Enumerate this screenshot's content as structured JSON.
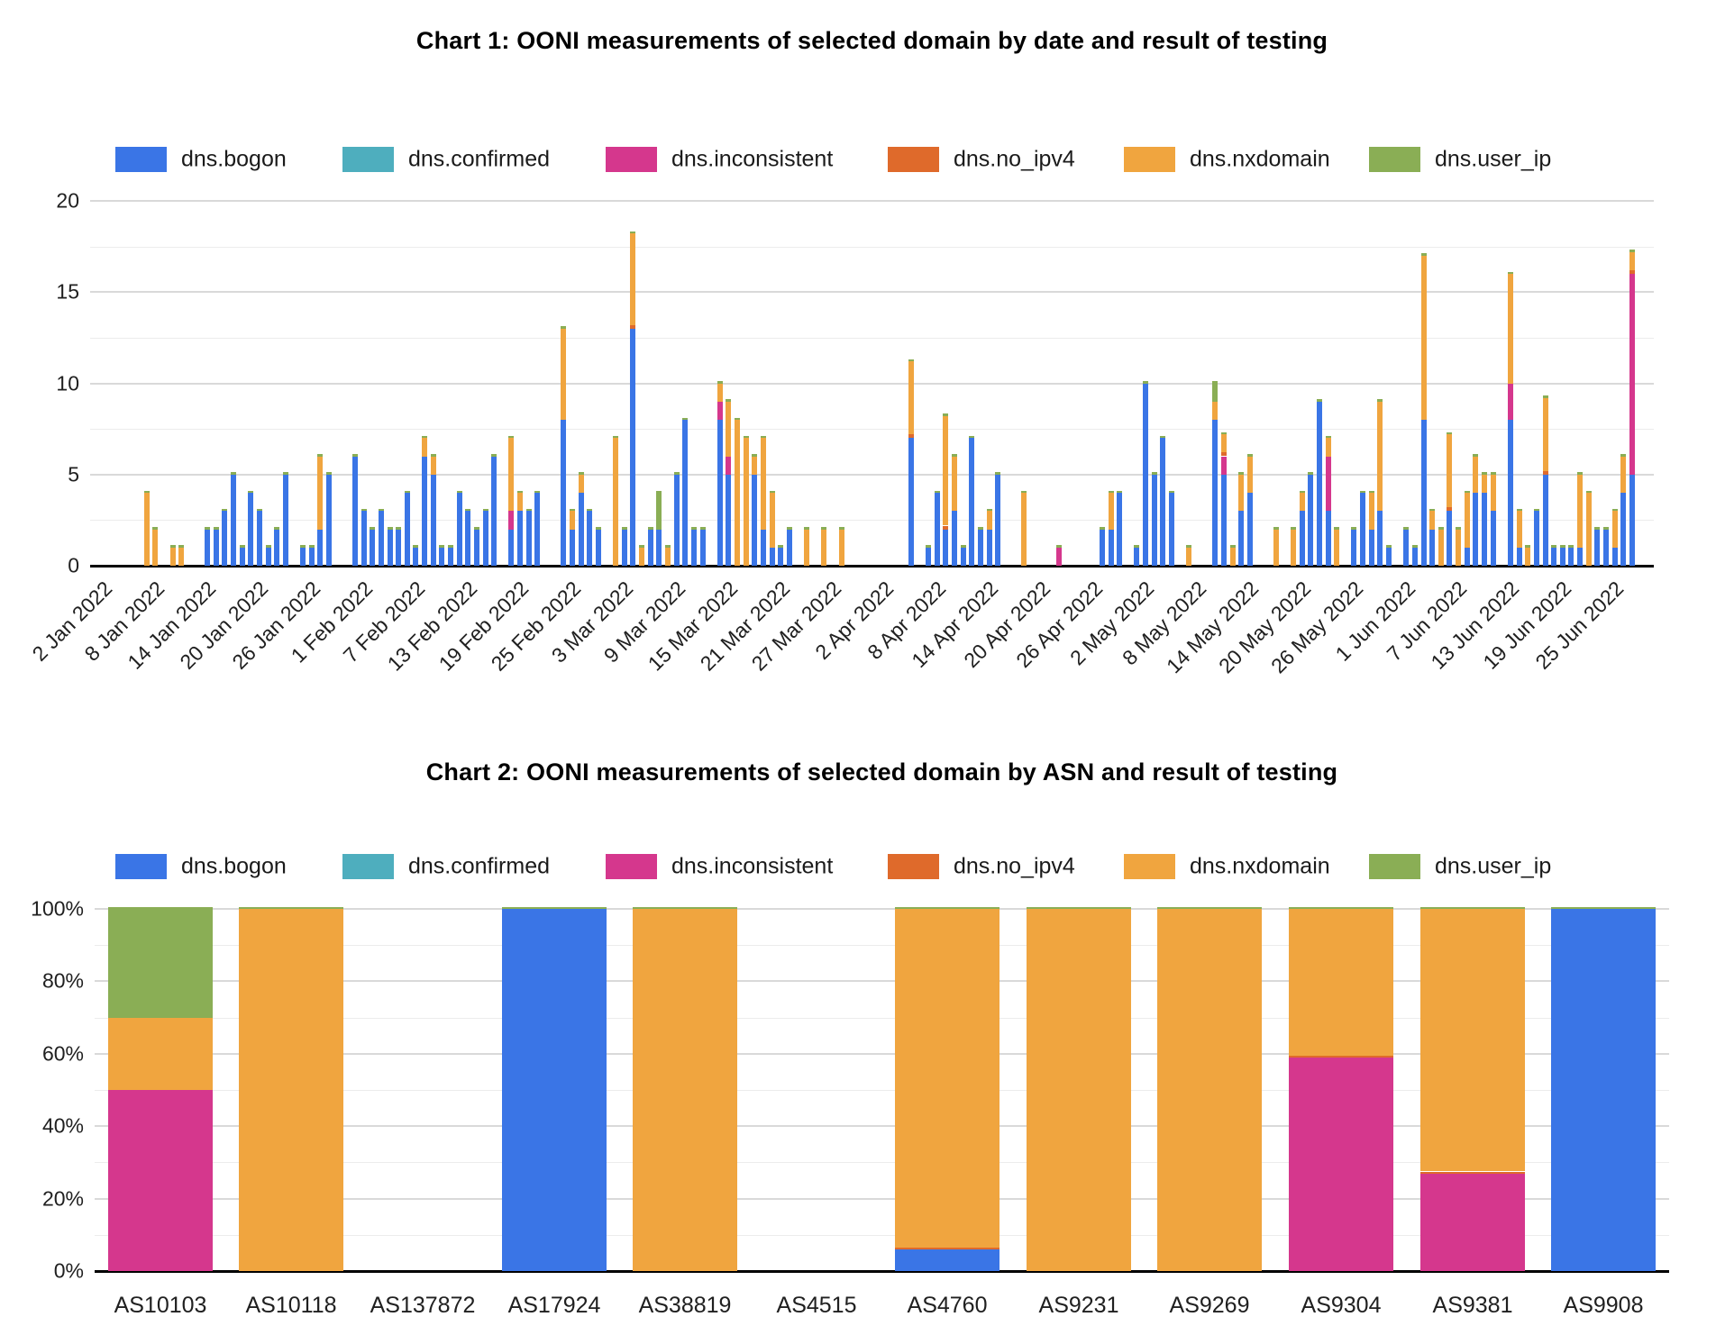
{
  "chart_data": [
    {
      "type": "bar",
      "stacked": true,
      "title": "Chart 1: OONI measurements of selected domain by date and result of testing",
      "legend_position": "top",
      "grid": true,
      "legend": [
        "dns.bogon",
        "dns.confirmed",
        "dns.inconsistent",
        "dns.no_ipv4",
        "dns.nxdomain",
        "dns.user_ip"
      ],
      "colors": {
        "bogon": "#3A75E6",
        "confirmed": "#4EAEBE",
        "inconsistent": "#D5378D",
        "no_ipv4": "#DF6A2B",
        "nxdomain": "#F0A53F",
        "user_ip": "#8AAE55"
      },
      "bar_top_cap_color": "#8AAE55",
      "ylabel": "",
      "xlabel": "",
      "ylim": [
        0,
        20
      ],
      "yticks": [
        0,
        5,
        10,
        15,
        20
      ],
      "x_axis": {
        "unit": "date",
        "start": "2 Jan 2022",
        "days_shown": 180,
        "tick_every_days": 6,
        "tick_labels": [
          "2 Jan 2022",
          "8 Jan 2022",
          "14 Jan 2022",
          "20 Jan 2022",
          "26 Jan 2022",
          "1 Feb 2022",
          "7 Feb 2022",
          "13 Feb 2022",
          "19 Feb 2022",
          "25 Feb 2022",
          "3 Mar 2022",
          "9 Mar 2022",
          "15 Mar 2022",
          "21 Mar 2022",
          "27 Mar 2022",
          "2 Apr 2022",
          "8 Apr 2022",
          "14 Apr 2022",
          "20 Apr 2022",
          "26 Apr 2022",
          "2 May 2022",
          "8 May 2022",
          "14 May 2022",
          "20 May 2022",
          "26 May 2022",
          "1 Jun 2022",
          "7 Jun 2022",
          "13 Jun 2022",
          "19 Jun 2022",
          "25 Jun 2022"
        ]
      },
      "bars": [
        {
          "day": 6,
          "nxdomain": 4
        },
        {
          "day": 7,
          "nxdomain": 2
        },
        {
          "day": 9,
          "nxdomain": 1
        },
        {
          "day": 10,
          "nxdomain": 1
        },
        {
          "day": 13,
          "bogon": 2
        },
        {
          "day": 14,
          "bogon": 2
        },
        {
          "day": 15,
          "bogon": 3
        },
        {
          "day": 16,
          "bogon": 5
        },
        {
          "day": 17,
          "bogon": 1
        },
        {
          "day": 18,
          "bogon": 4
        },
        {
          "day": 19,
          "bogon": 3
        },
        {
          "day": 20,
          "bogon": 1
        },
        {
          "day": 21,
          "bogon": 2
        },
        {
          "day": 22,
          "bogon": 5
        },
        {
          "day": 24,
          "bogon": 1
        },
        {
          "day": 25,
          "bogon": 1
        },
        {
          "day": 26,
          "bogon": 2,
          "nxdomain": 4
        },
        {
          "day": 27,
          "bogon": 5
        },
        {
          "day": 30,
          "bogon": 6
        },
        {
          "day": 31,
          "bogon": 3
        },
        {
          "day": 32,
          "bogon": 2
        },
        {
          "day": 33,
          "bogon": 3
        },
        {
          "day": 34,
          "bogon": 2
        },
        {
          "day": 35,
          "bogon": 2
        },
        {
          "day": 36,
          "bogon": 4
        },
        {
          "day": 37,
          "bogon": 1
        },
        {
          "day": 38,
          "bogon": 6,
          "nxdomain": 1
        },
        {
          "day": 39,
          "bogon": 5,
          "nxdomain": 1
        },
        {
          "day": 40,
          "bogon": 1
        },
        {
          "day": 41,
          "bogon": 1
        },
        {
          "day": 42,
          "bogon": 4
        },
        {
          "day": 43,
          "bogon": 3
        },
        {
          "day": 44,
          "bogon": 2
        },
        {
          "day": 45,
          "bogon": 3
        },
        {
          "day": 46,
          "bogon": 6
        },
        {
          "day": 48,
          "bogon": 2,
          "inconsistent": 1,
          "nxdomain": 4
        },
        {
          "day": 49,
          "bogon": 3,
          "nxdomain": 1
        },
        {
          "day": 50,
          "bogon": 3
        },
        {
          "day": 51,
          "bogon": 4
        },
        {
          "day": 54,
          "bogon": 8,
          "nxdomain": 5
        },
        {
          "day": 55,
          "bogon": 2,
          "nxdomain": 1
        },
        {
          "day": 56,
          "bogon": 4,
          "nxdomain": 1
        },
        {
          "day": 57,
          "bogon": 3
        },
        {
          "day": 58,
          "bogon": 2
        },
        {
          "day": 60,
          "nxdomain": 7
        },
        {
          "day": 61,
          "bogon": 2
        },
        {
          "day": 62,
          "bogon": 13,
          "no_ipv4": 0.2,
          "nxdomain": 5
        },
        {
          "day": 63,
          "nxdomain": 1
        },
        {
          "day": 64,
          "bogon": 2
        },
        {
          "day": 65,
          "bogon": 2,
          "user_ip": 2
        },
        {
          "day": 66,
          "nxdomain": 1
        },
        {
          "day": 67,
          "bogon": 5
        },
        {
          "day": 68,
          "bogon": 8
        },
        {
          "day": 69,
          "bogon": 2
        },
        {
          "day": 70,
          "bogon": 2
        },
        {
          "day": 72,
          "bogon": 8,
          "inconsistent": 1,
          "nxdomain": 1
        },
        {
          "day": 73,
          "bogon": 5,
          "inconsistent": 1,
          "nxdomain": 3
        },
        {
          "day": 74,
          "nxdomain": 8
        },
        {
          "day": 75,
          "nxdomain": 7
        },
        {
          "day": 76,
          "bogon": 5,
          "nxdomain": 1
        },
        {
          "day": 77,
          "bogon": 2,
          "nxdomain": 5
        },
        {
          "day": 78,
          "bogon": 1,
          "nxdomain": 3
        },
        {
          "day": 79,
          "bogon": 1
        },
        {
          "day": 80,
          "bogon": 2
        },
        {
          "day": 82,
          "nxdomain": 2
        },
        {
          "day": 84,
          "nxdomain": 2
        },
        {
          "day": 86,
          "nxdomain": 2
        },
        {
          "day": 94,
          "bogon": 7,
          "no_ipv4": 0.2,
          "nxdomain": 4
        },
        {
          "day": 96,
          "bogon": 1
        },
        {
          "day": 97,
          "bogon": 4
        },
        {
          "day": 98,
          "bogon": 2,
          "no_ipv4": 0.2,
          "nxdomain": 6
        },
        {
          "day": 99,
          "bogon": 3,
          "nxdomain": 3
        },
        {
          "day": 100,
          "bogon": 1
        },
        {
          "day": 101,
          "bogon": 7
        },
        {
          "day": 102,
          "bogon": 2
        },
        {
          "day": 103,
          "bogon": 2,
          "nxdomain": 1
        },
        {
          "day": 104,
          "bogon": 5
        },
        {
          "day": 107,
          "nxdomain": 4
        },
        {
          "day": 111,
          "inconsistent": 1
        },
        {
          "day": 116,
          "bogon": 2
        },
        {
          "day": 117,
          "bogon": 2,
          "nxdomain": 2
        },
        {
          "day": 118,
          "bogon": 4
        },
        {
          "day": 120,
          "bogon": 1
        },
        {
          "day": 121,
          "bogon": 10
        },
        {
          "day": 122,
          "bogon": 5
        },
        {
          "day": 123,
          "bogon": 7
        },
        {
          "day": 124,
          "bogon": 4
        },
        {
          "day": 126,
          "nxdomain": 1
        },
        {
          "day": 129,
          "bogon": 8,
          "nxdomain": 1,
          "user_ip": 1
        },
        {
          "day": 130,
          "bogon": 5,
          "inconsistent": 1,
          "no_ipv4": 0.2,
          "nxdomain": 1
        },
        {
          "day": 131,
          "nxdomain": 1
        },
        {
          "day": 132,
          "bogon": 3,
          "nxdomain": 2
        },
        {
          "day": 133,
          "bogon": 4,
          "nxdomain": 2
        },
        {
          "day": 136,
          "nxdomain": 2
        },
        {
          "day": 138,
          "nxdomain": 2
        },
        {
          "day": 139,
          "bogon": 3,
          "nxdomain": 1
        },
        {
          "day": 140,
          "bogon": 5
        },
        {
          "day": 141,
          "bogon": 9
        },
        {
          "day": 142,
          "bogon": 3,
          "inconsistent": 3,
          "nxdomain": 1
        },
        {
          "day": 143,
          "nxdomain": 2
        },
        {
          "day": 145,
          "bogon": 2
        },
        {
          "day": 146,
          "bogon": 4
        },
        {
          "day": 147,
          "bogon": 2,
          "nxdomain": 2
        },
        {
          "day": 148,
          "bogon": 3,
          "nxdomain": 6
        },
        {
          "day": 149,
          "bogon": 1
        },
        {
          "day": 151,
          "bogon": 2
        },
        {
          "day": 152,
          "bogon": 1
        },
        {
          "day": 153,
          "bogon": 8,
          "nxdomain": 9
        },
        {
          "day": 154,
          "bogon": 2,
          "nxdomain": 1
        },
        {
          "day": 155,
          "nxdomain": 2
        },
        {
          "day": 156,
          "bogon": 3,
          "no_ipv4": 0.2,
          "nxdomain": 4
        },
        {
          "day": 157,
          "nxdomain": 2
        },
        {
          "day": 158,
          "bogon": 1,
          "nxdomain": 3
        },
        {
          "day": 159,
          "bogon": 4,
          "nxdomain": 2
        },
        {
          "day": 160,
          "bogon": 4,
          "nxdomain": 1
        },
        {
          "day": 161,
          "bogon": 3,
          "nxdomain": 2
        },
        {
          "day": 163,
          "bogon": 8,
          "inconsistent": 2,
          "nxdomain": 6
        },
        {
          "day": 164,
          "bogon": 1,
          "nxdomain": 2
        },
        {
          "day": 165,
          "nxdomain": 1
        },
        {
          "day": 166,
          "bogon": 3
        },
        {
          "day": 167,
          "bogon": 5,
          "no_ipv4": 0.2,
          "nxdomain": 4
        },
        {
          "day": 168,
          "bogon": 1
        },
        {
          "day": 169,
          "bogon": 1
        },
        {
          "day": 170,
          "bogon": 1
        },
        {
          "day": 171,
          "bogon": 1,
          "nxdomain": 4
        },
        {
          "day": 172,
          "nxdomain": 4
        },
        {
          "day": 173,
          "bogon": 2
        },
        {
          "day": 174,
          "bogon": 2
        },
        {
          "day": 175,
          "bogon": 1,
          "nxdomain": 2
        },
        {
          "day": 176,
          "bogon": 4,
          "nxdomain": 2
        },
        {
          "day": 177,
          "bogon": 5,
          "inconsistent": 11,
          "no_ipv4": 0.2,
          "nxdomain": 1
        }
      ]
    },
    {
      "type": "bar",
      "stacked": true,
      "percent": true,
      "title": "Chart 2: OONI measurements of selected domain by ASN and result of testing",
      "legend_position": "top",
      "grid": true,
      "legend": [
        "dns.bogon",
        "dns.confirmed",
        "dns.inconsistent",
        "dns.no_ipv4",
        "dns.nxdomain",
        "dns.user_ip"
      ],
      "colors": {
        "bogon": "#3A75E6",
        "confirmed": "#4EAEBE",
        "inconsistent": "#D5378D",
        "no_ipv4": "#DF6A2B",
        "nxdomain": "#F0A53F",
        "user_ip": "#8AAE55"
      },
      "bar_top_cap_color": "#8AAE55",
      "ylim": [
        0,
        100
      ],
      "ytick_labels": [
        "0%",
        "20%",
        "40%",
        "60%",
        "80%",
        "100%"
      ],
      "categories": [
        "AS10103",
        "AS10118",
        "AS137872",
        "AS17924",
        "AS38819",
        "AS4515",
        "AS4760",
        "AS9231",
        "AS9269",
        "AS9304",
        "AS9381",
        "AS9908"
      ],
      "bars": [
        {
          "category": "AS10103",
          "inconsistent": 50,
          "nxdomain": 20,
          "user_ip": 30
        },
        {
          "category": "AS10118",
          "nxdomain": 100
        },
        {
          "category": "AS137872"
        },
        {
          "category": "AS17924",
          "bogon": 100
        },
        {
          "category": "AS38819",
          "nxdomain": 100
        },
        {
          "category": "AS4515"
        },
        {
          "category": "AS4760",
          "bogon": 6,
          "no_ipv4": 0.5,
          "nxdomain": 93.5
        },
        {
          "category": "AS9231",
          "nxdomain": 100
        },
        {
          "category": "AS9269",
          "nxdomain": 100
        },
        {
          "category": "AS9304",
          "inconsistent": 59,
          "no_ipv4": 0.5,
          "nxdomain": 40.5
        },
        {
          "category": "AS9381",
          "inconsistent": 27,
          "no_ipv4": 0.5,
          "nxdomain": 72.5
        },
        {
          "category": "AS9908",
          "bogon": 100
        }
      ]
    }
  ]
}
